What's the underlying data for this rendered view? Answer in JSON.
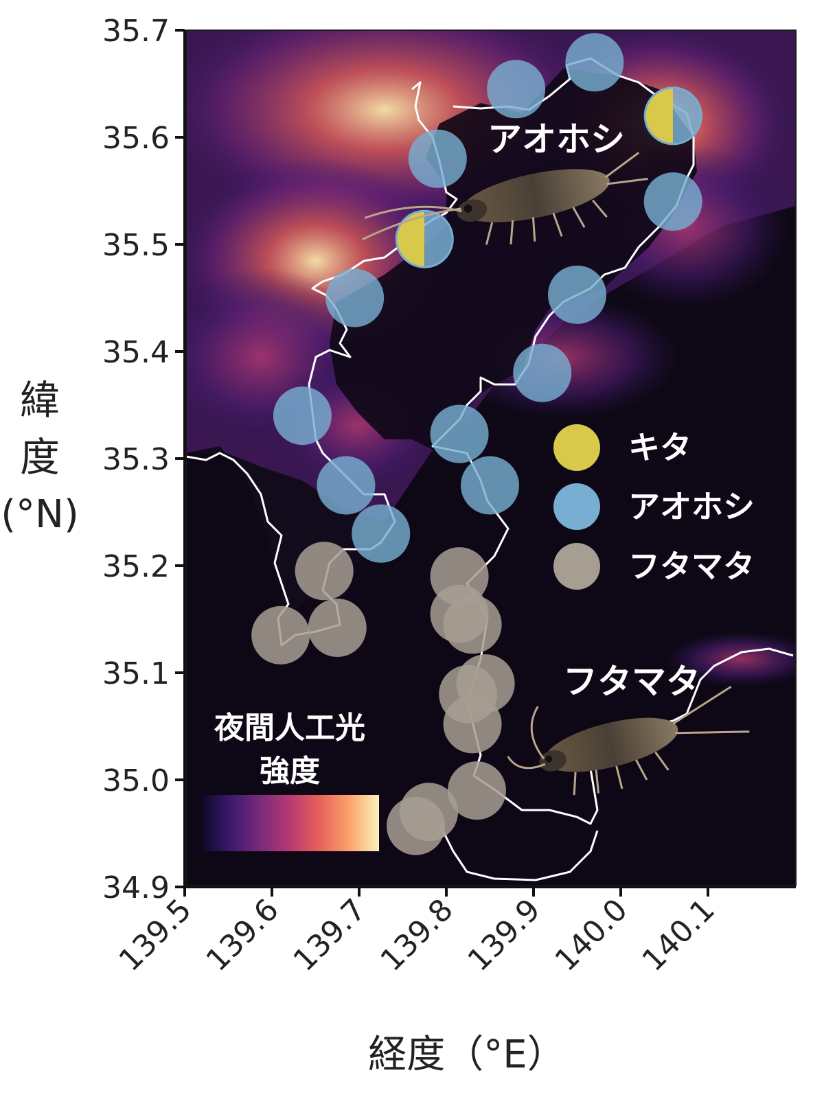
{
  "chart_data": {
    "type": "map",
    "xlabel": "経度（°E）",
    "ylabel_chars": [
      "緯",
      "度",
      "(°N)"
    ],
    "xlim": [
      139.5,
      140.2
    ],
    "ylim": [
      34.9,
      35.7
    ],
    "x_ticks": [
      "139.5",
      "139.6",
      "139.7",
      "139.8",
      "139.9",
      "140.0",
      "140.1"
    ],
    "y_ticks": [
      "35.7",
      "35.6",
      "35.5",
      "35.4",
      "35.3",
      "35.2",
      "35.1",
      "35.0",
      "34.9"
    ],
    "colorbar_title": [
      "夜間人工光",
      "強度"
    ],
    "colorbar_colors": [
      "#0d0825",
      "#3b1a6e",
      "#7a2a7c",
      "#b63a73",
      "#e8615a",
      "#f9a36b",
      "#fdf2bd"
    ],
    "species": {
      "kita": {
        "label": "キタ",
        "color": "#d8c94a"
      },
      "aohoshi": {
        "label": "アオホシ",
        "color": "#78aed1"
      },
      "futamata": {
        "label": "フタマタ",
        "color": "#a79e93"
      }
    },
    "legend": [
      "kita",
      "aohoshi",
      "futamata"
    ],
    "map_labels": {
      "aohoshi": "アオホシ",
      "futamata": "フタマタ"
    },
    "sites": [
      {
        "lon": 139.97,
        "lat": 35.67,
        "type": "aohoshi"
      },
      {
        "lon": 139.88,
        "lat": 35.645,
        "type": "aohoshi"
      },
      {
        "lon": 140.06,
        "lat": 35.62,
        "type": "mixed"
      },
      {
        "lon": 139.79,
        "lat": 35.58,
        "type": "aohoshi"
      },
      {
        "lon": 140.06,
        "lat": 35.54,
        "type": "aohoshi"
      },
      {
        "lon": 139.775,
        "lat": 35.505,
        "type": "mixed"
      },
      {
        "lon": 139.695,
        "lat": 35.45,
        "type": "aohoshi"
      },
      {
        "lon": 139.95,
        "lat": 35.453,
        "type": "aohoshi"
      },
      {
        "lon": 139.91,
        "lat": 35.38,
        "type": "aohoshi"
      },
      {
        "lon": 139.635,
        "lat": 35.34,
        "type": "aohoshi"
      },
      {
        "lon": 139.815,
        "lat": 35.323,
        "type": "aohoshi"
      },
      {
        "lon": 139.685,
        "lat": 35.275,
        "type": "aohoshi"
      },
      {
        "lon": 139.85,
        "lat": 35.275,
        "type": "aohoshi"
      },
      {
        "lon": 139.725,
        "lat": 35.23,
        "type": "aohoshi"
      },
      {
        "lon": 139.66,
        "lat": 35.195,
        "type": "futamata"
      },
      {
        "lon": 139.815,
        "lat": 35.19,
        "type": "futamata"
      },
      {
        "lon": 139.815,
        "lat": 35.155,
        "type": "futamata"
      },
      {
        "lon": 139.83,
        "lat": 35.145,
        "type": "futamata"
      },
      {
        "lon": 139.61,
        "lat": 35.135,
        "type": "futamata"
      },
      {
        "lon": 139.675,
        "lat": 35.142,
        "type": "futamata"
      },
      {
        "lon": 139.845,
        "lat": 35.09,
        "type": "futamata"
      },
      {
        "lon": 139.825,
        "lat": 35.08,
        "type": "futamata"
      },
      {
        "lon": 139.83,
        "lat": 35.052,
        "type": "futamata"
      },
      {
        "lon": 139.835,
        "lat": 34.99,
        "type": "futamata"
      },
      {
        "lon": 139.78,
        "lat": 34.97,
        "type": "futamata"
      },
      {
        "lon": 139.765,
        "lat": 34.957,
        "type": "futamata"
      }
    ]
  }
}
